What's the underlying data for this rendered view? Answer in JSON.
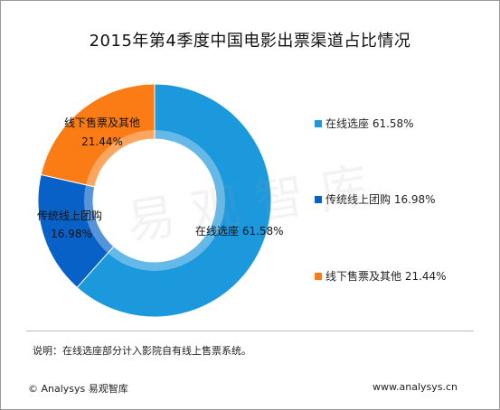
{
  "title": "2015年第4季度中国电影出票渠道占比情况",
  "watermark": "易观智库",
  "chart_data": {
    "type": "pie",
    "variant": "donut",
    "title": "2015年第4季度中国电影出票渠道占比情况",
    "slices": [
      {
        "name": "在线选座",
        "value": 61.58,
        "label": "61.58%",
        "color": "#1c99dd"
      },
      {
        "name": "传统线上团购",
        "value": 16.98,
        "label": "16.98%",
        "color": "#0861c6"
      },
      {
        "name": "线下售票及其他",
        "value": 21.44,
        "label": "21.44%",
        "color": "#fb7c15"
      }
    ],
    "legend_position": "right"
  },
  "legend": [
    {
      "text": "在线选座 61.58%",
      "color": "#1c99dd"
    },
    {
      "text": "传统线上团购 16.98%",
      "color": "#0861c6"
    },
    {
      "text": "线下售票及其他 21.44%",
      "color": "#fb7c15"
    }
  ],
  "note": "说明：在线选座部分计入影院自有线上售票系统。",
  "footer": {
    "left": "© Analysys 易观智库",
    "right": "www.analysys.cn"
  }
}
